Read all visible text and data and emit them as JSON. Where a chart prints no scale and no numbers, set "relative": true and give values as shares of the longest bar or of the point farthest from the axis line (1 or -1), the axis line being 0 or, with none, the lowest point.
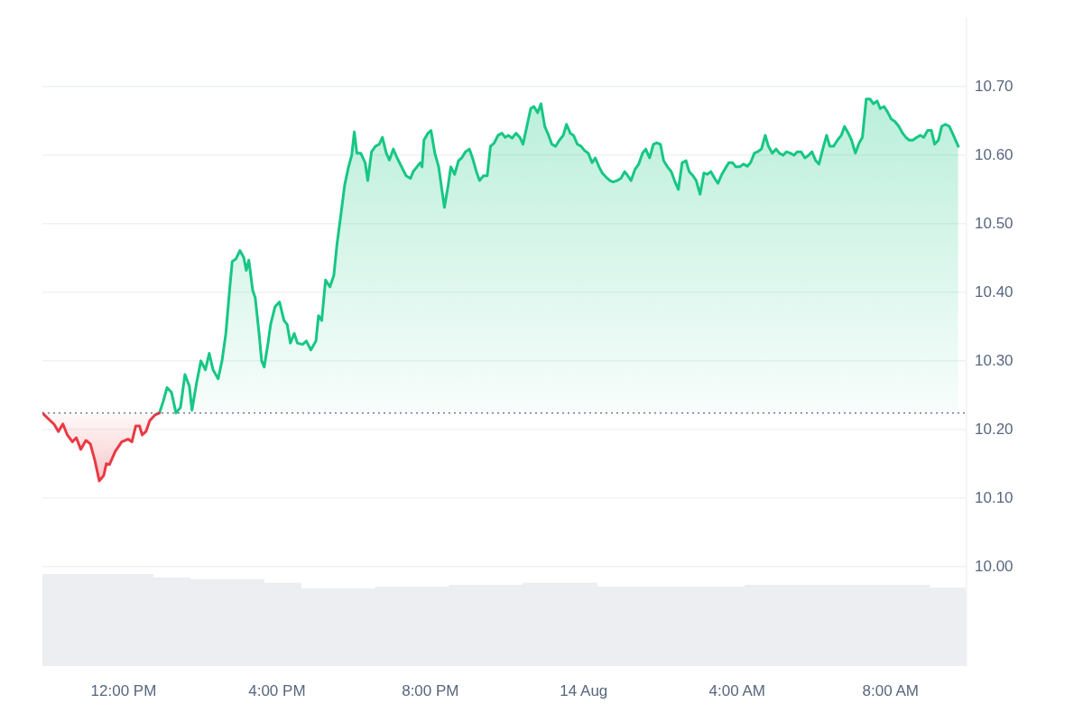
{
  "chart_data": [
    {
      "type": "area",
      "xlim": [
        "--08-13T09:53",
        "--08-14T09:59"
      ],
      "ylim": [
        9.855,
        10.8
      ],
      "xticks": [
        {
          "value": "--08-13T12:00",
          "label": "12:00 PM"
        },
        {
          "value": "--08-13T16:00",
          "label": "4:00 PM"
        },
        {
          "value": "--08-13T20:00",
          "label": "8:00 PM"
        },
        {
          "value": "--08-14T00:00",
          "label": "14 Aug"
        },
        {
          "value": "--08-14T04:00",
          "label": "4:00 AM"
        },
        {
          "value": "--08-14T08:00",
          "label": "8:00 AM"
        }
      ],
      "yticks": [
        {
          "value": 10,
          "label": "10.00"
        },
        {
          "value": 10.1,
          "label": "10.10"
        },
        {
          "value": 10.2,
          "label": "10.20"
        },
        {
          "value": 10.3,
          "label": "10.30"
        },
        {
          "value": 10.4,
          "label": "10.40"
        },
        {
          "value": 10.5,
          "label": "10.50"
        },
        {
          "value": 10.6,
          "label": "10.60"
        },
        {
          "value": 10.7,
          "label": "10.70"
        }
      ],
      "grid": "y",
      "marker": "none",
      "line_style": "solid",
      "ref_lines": [
        {
          "axis": "y",
          "value": 10.224,
          "color": "#58667e",
          "line_style": "dotted"
        }
      ],
      "series": [
        {
          "color": "#ea3943",
          "x": [
            "--08-13T09:53",
            "--08-13T10:04",
            "--08-13T10:11",
            "--08-13T10:18",
            "--08-13T10:25",
            "--08-13T10:32",
            "--08-13T10:40",
            "--08-13T10:46",
            "--08-13T10:53",
            "--08-13T11:01",
            "--08-13T11:08",
            "--08-13T11:15",
            "--08-13T11:22",
            "--08-13T11:29",
            "--08-13T11:33",
            "--08-13T11:38",
            "--08-13T11:47",
            "--08-13T11:57",
            "--08-13T12:07",
            "--08-13T12:13",
            "--08-13T12:19",
            "--08-13T12:25",
            "--08-13T12:29",
            "--08-13T12:35",
            "--08-13T12:41",
            "--08-13T12:49",
            "--08-13T12:56"
          ],
          "values": [
            10.224,
            10.214,
            10.208,
            10.197,
            10.208,
            10.192,
            10.182,
            10.188,
            10.171,
            10.184,
            10.179,
            10.155,
            10.125,
            10.133,
            10.15,
            10.149,
            10.168,
            10.182,
            10.186,
            10.182,
            10.205,
            10.205,
            10.192,
            10.197,
            10.213,
            10.221,
            10.224
          ]
        },
        {
          "color": "#16c784",
          "x": [
            "--08-13T12:56",
            "--08-13T13:02",
            "--08-13T13:08",
            "--08-13T13:15",
            "--08-13T13:22",
            "--08-13T13:29",
            "--08-13T13:36",
            "--08-13T13:43",
            "--08-13T13:47",
            "--08-13T13:54",
            "--08-13T14:01",
            "--08-13T14:08",
            "--08-13T14:14",
            "--08-13T14:20",
            "--08-13T14:28",
            "--08-13T14:34",
            "--08-13T14:40",
            "--08-13T14:46",
            "--08-13T14:50",
            "--08-13T14:56",
            "--08-13T15:02",
            "--08-13T15:08",
            "--08-13T15:12",
            "--08-13T15:16",
            "--08-13T15:22",
            "--08-13T15:26",
            "--08-13T15:32",
            "--08-13T15:36",
            "--08-13T15:40",
            "--08-13T15:46",
            "--08-13T15:50",
            "--08-13T15:57",
            "--08-13T16:04",
            "--08-13T16:11",
            "--08-13T16:16",
            "--08-13T16:21",
            "--08-13T16:27",
            "--08-13T16:32",
            "--08-13T16:40",
            "--08-13T16:46",
            "--08-13T16:53",
            "--08-13T17:01",
            "--08-13T17:05",
            "--08-13T17:10",
            "--08-13T17:16",
            "--08-13T17:23",
            "--08-13T17:29",
            "--08-13T17:34",
            "--08-13T17:40",
            "--08-13T17:46",
            "--08-13T17:52",
            "--08-13T17:57",
            "--08-13T18:01",
            "--08-13T18:05",
            "--08-13T18:11",
            "--08-13T18:18",
            "--08-13T18:22",
            "--08-13T18:28",
            "--08-13T18:34",
            "--08-13T18:40",
            "--08-13T18:45",
            "--08-13T18:51",
            "--08-13T18:56",
            "--08-13T19:02",
            "--08-13T19:08",
            "--08-13T19:15",
            "--08-13T19:22",
            "--08-13T19:29",
            "--08-13T19:33",
            "--08-13T19:39",
            "--08-13T19:44",
            "--08-13T19:47",
            "--08-13T19:50",
            "--08-13T19:56",
            "--08-13T20:01",
            "--08-13T20:07",
            "--08-13T20:13",
            "--08-13T20:18",
            "--08-13T20:22",
            "--08-13T20:28",
            "--08-13T20:32",
            "--08-13T20:38",
            "--08-13T20:44",
            "--08-13T20:49",
            "--08-13T20:55",
            "--08-13T21:01",
            "--08-13T21:06",
            "--08-13T21:12",
            "--08-13T21:17",
            "--08-13T21:23",
            "--08-13T21:29",
            "--08-13T21:34",
            "--08-13T21:40",
            "--08-13T21:46",
            "--08-13T21:52",
            "--08-13T21:57",
            "--08-13T22:02",
            "--08-13T22:08",
            "--08-13T22:14",
            "--08-13T22:20",
            "--08-13T22:25",
            "--08-13T22:31",
            "--08-13T22:37",
            "--08-13T22:42",
            "--08-13T22:48",
            "--08-13T22:53",
            "--08-13T22:59",
            "--08-13T23:05",
            "--08-13T23:10",
            "--08-13T23:16",
            "--08-13T23:22",
            "--08-13T23:28",
            "--08-13T23:33",
            "--08-13T23:39",
            "--08-13T23:44",
            "--08-13T23:50",
            "--08-13T23:56",
            "--08-14T00:01",
            "--08-14T00:07",
            "--08-14T00:13",
            "--08-14T00:18",
            "--08-14T00:24",
            "--08-14T00:29",
            "--08-14T00:35",
            "--08-14T00:41",
            "--08-14T00:46",
            "--08-14T00:52",
            "--08-14T00:58",
            "--08-14T01:04",
            "--08-14T01:09",
            "--08-14T01:14",
            "--08-14T01:20",
            "--08-14T01:26",
            "--08-14T01:32",
            "--08-14T01:37",
            "--08-14T01:43",
            "--08-14T01:49",
            "--08-14T01:54",
            "--08-14T02:00",
            "--08-14T02:05",
            "--08-14T02:11",
            "--08-14T02:17",
            "--08-14T02:22",
            "--08-14T02:28",
            "--08-14T02:34",
            "--08-14T02:40",
            "--08-14T02:45",
            "--08-14T02:51",
            "--08-14T02:56",
            "--08-14T03:02",
            "--08-14T03:08",
            "--08-14T03:13",
            "--08-14T03:19",
            "--08-14T03:25",
            "--08-14T03:30",
            "--08-14T03:36",
            "--08-14T03:41",
            "--08-14T03:47",
            "--08-14T03:53",
            "--08-14T03:58",
            "--08-14T04:04",
            "--08-14T04:10",
            "--08-14T04:16",
            "--08-14T04:21",
            "--08-14T04:27",
            "--08-14T04:32",
            "--08-14T04:38",
            "--08-14T04:44",
            "--08-14T04:49",
            "--08-14T04:55",
            "--08-14T05:01",
            "--08-14T05:06",
            "--08-14T05:12",
            "--08-14T05:17",
            "--08-14T05:23",
            "--08-14T05:29",
            "--08-14T05:34",
            "--08-14T05:40",
            "--08-14T05:46",
            "--08-14T05:52",
            "--08-14T05:57",
            "--08-14T06:03",
            "--08-14T06:08",
            "--08-14T06:14",
            "--08-14T06:20",
            "--08-14T06:25",
            "--08-14T06:31",
            "--08-14T06:37",
            "--08-14T06:43",
            "--08-14T06:48",
            "--08-14T06:54",
            "--08-14T06:59",
            "--08-14T07:05",
            "--08-14T07:11",
            "--08-14T07:16",
            "--08-14T07:22",
            "--08-14T07:28",
            "--08-14T07:33",
            "--08-14T07:39",
            "--08-14T07:44",
            "--08-14T07:50",
            "--08-14T07:56",
            "--08-14T08:01",
            "--08-14T08:07",
            "--08-14T08:13",
            "--08-14T08:19",
            "--08-14T08:24",
            "--08-14T08:29",
            "--08-14T08:35",
            "--08-14T08:41",
            "--08-14T08:47",
            "--08-14T08:52",
            "--08-14T08:58",
            "--08-14T09:04",
            "--08-14T09:09",
            "--08-14T09:15",
            "--08-14T09:20",
            "--08-14T09:26",
            "--08-14T09:32",
            "--08-14T09:37",
            "--08-14T09:46"
          ],
          "values": [
            10.224,
            10.241,
            10.261,
            10.254,
            10.224,
            10.232,
            10.28,
            10.263,
            10.228,
            10.267,
            10.3,
            10.287,
            10.311,
            10.287,
            10.274,
            10.3,
            10.34,
            10.405,
            10.445,
            10.449,
            10.461,
            10.451,
            10.432,
            10.447,
            10.403,
            10.392,
            10.34,
            10.3,
            10.291,
            10.326,
            10.353,
            10.379,
            10.386,
            10.359,
            10.353,
            10.326,
            10.34,
            10.326,
            10.324,
            10.329,
            10.316,
            10.329,
            10.366,
            10.359,
            10.418,
            10.408,
            10.425,
            10.471,
            10.513,
            10.557,
            10.583,
            10.6,
            10.634,
            10.603,
            10.603,
            10.589,
            10.563,
            10.605,
            10.613,
            10.616,
            10.626,
            10.603,
            10.593,
            10.609,
            10.596,
            10.583,
            10.57,
            10.566,
            10.576,
            10.583,
            10.589,
            10.583,
            10.622,
            10.632,
            10.636,
            10.603,
            10.583,
            10.55,
            10.524,
            10.557,
            10.583,
            10.572,
            10.592,
            10.596,
            10.605,
            10.609,
            10.596,
            10.576,
            10.563,
            10.57,
            10.57,
            10.613,
            10.618,
            10.629,
            10.632,
            10.626,
            10.629,
            10.625,
            10.632,
            10.626,
            10.616,
            10.642,
            10.668,
            10.671,
            10.662,
            10.675,
            10.642,
            10.629,
            10.616,
            10.613,
            10.622,
            10.629,
            10.645,
            10.632,
            10.629,
            10.616,
            10.613,
            10.607,
            10.603,
            10.589,
            10.596,
            10.583,
            10.574,
            10.568,
            10.563,
            10.561,
            10.563,
            10.566,
            10.576,
            10.57,
            10.563,
            10.579,
            10.587,
            10.603,
            10.609,
            10.596,
            10.616,
            10.618,
            10.616,
            10.592,
            10.583,
            10.576,
            10.563,
            10.55,
            10.589,
            10.592,
            10.576,
            10.57,
            10.563,
            10.543,
            10.574,
            10.572,
            10.576,
            10.566,
            10.559,
            10.572,
            10.58,
            10.589,
            10.589,
            10.583,
            10.583,
            10.587,
            10.584,
            10.589,
            10.603,
            10.605,
            10.609,
            10.629,
            10.613,
            10.603,
            10.609,
            10.603,
            10.6,
            10.605,
            10.603,
            10.6,
            10.605,
            10.605,
            10.596,
            10.6,
            10.605,
            10.592,
            10.587,
            10.609,
            10.629,
            10.613,
            10.613,
            10.622,
            10.629,
            10.642,
            10.632,
            10.622,
            10.603,
            10.618,
            10.626,
            10.682,
            10.682,
            10.675,
            10.679,
            10.668,
            10.671,
            10.662,
            10.653,
            10.649,
            10.642,
            10.632,
            10.626,
            10.622,
            10.622,
            10.626,
            10.629,
            10.626,
            10.636,
            10.636,
            10.616,
            10.622,
            10.642,
            10.645,
            10.642,
            10.632,
            10.613
          ]
        }
      ]
    },
    {
      "type": "bar",
      "relative": true,
      "categories": [
        null,
        null,
        null,
        null,
        null,
        null,
        null,
        null,
        null,
        null,
        null,
        null,
        null,
        null,
        null,
        null,
        null,
        null,
        null,
        null,
        null,
        null,
        null,
        null,
        null
      ],
      "series": [
        {
          "color": "#eceef2",
          "values": [
            1,
            1,
            1,
            0.96,
            0.94,
            0.94,
            0.9,
            0.84,
            0.84,
            0.86,
            0.86,
            0.88,
            0.88,
            0.9,
            0.9,
            0.86,
            0.86,
            0.86,
            0.86,
            0.88,
            0.88,
            0.88,
            0.88,
            0.88,
            0.85
          ]
        }
      ]
    }
  ]
}
